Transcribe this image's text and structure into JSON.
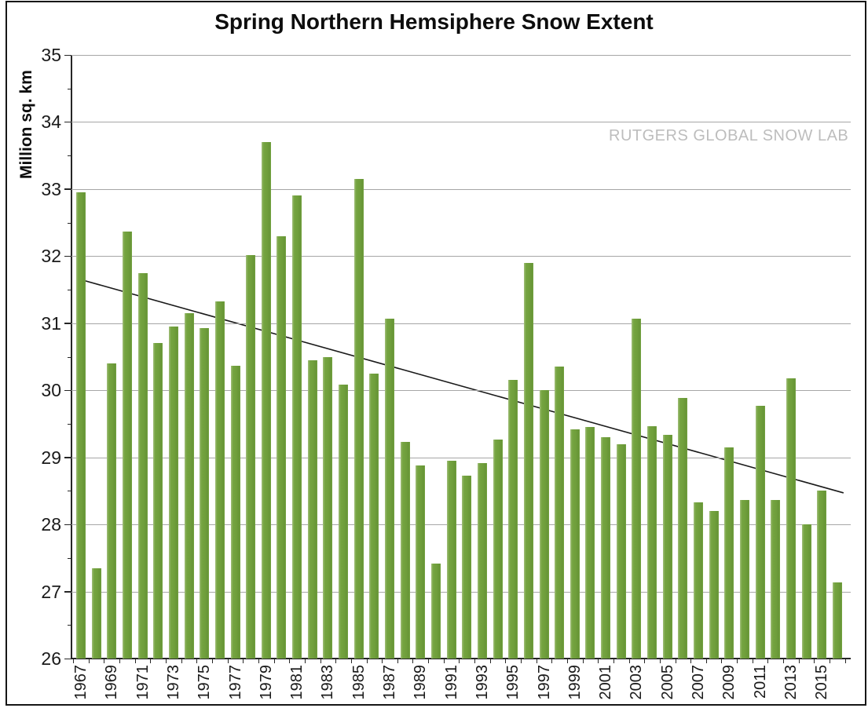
{
  "title": "Spring Northern Hemsiphere Snow Extent",
  "watermark": "RUTGERS GLOBAL SNOW LAB",
  "chart_data": {
    "type": "bar",
    "title": "Spring Northern Hemsiphere Snow Extent",
    "xlabel": "",
    "ylabel": "Million sq. km",
    "ylim": [
      26,
      35
    ],
    "y_major_step": 1,
    "y_minor_step": 0.5,
    "grid": true,
    "legend": "none",
    "x_labels_every": 2,
    "categories": [
      1967,
      1968,
      1969,
      1970,
      1971,
      1972,
      1973,
      1974,
      1975,
      1976,
      1977,
      1978,
      1979,
      1980,
      1981,
      1982,
      1983,
      1984,
      1985,
      1986,
      1987,
      1988,
      1989,
      1990,
      1991,
      1992,
      1993,
      1994,
      1995,
      1996,
      1997,
      1998,
      1999,
      2000,
      2001,
      2002,
      2003,
      2004,
      2005,
      2006,
      2007,
      2008,
      2009,
      2010,
      2011,
      2012,
      2013,
      2014,
      2015,
      2016
    ],
    "values": [
      32.95,
      27.35,
      30.4,
      32.37,
      31.75,
      30.7,
      30.95,
      31.15,
      30.93,
      31.32,
      30.37,
      32.02,
      33.7,
      32.3,
      32.9,
      30.45,
      30.5,
      30.08,
      33.15,
      30.25,
      31.07,
      29.23,
      28.88,
      27.42,
      28.95,
      28.73,
      28.92,
      29.27,
      30.15,
      31.9,
      30.0,
      30.35,
      29.42,
      29.45,
      29.3,
      29.2,
      31.07,
      29.47,
      29.33,
      29.88,
      28.33,
      28.2,
      29.15,
      28.37,
      29.77,
      28.37,
      30.18,
      28.0,
      28.5,
      27.13
    ],
    "trendline": {
      "start_year": 1967,
      "start_value": 31.65,
      "end_year": 2016,
      "end_value": 28.47
    },
    "colors": {
      "bar": "#6f9e3b",
      "bar_edge_light": "#a3bf7c",
      "bar_mid": "#75a441",
      "bar_dark": "#679537",
      "gridline": "#a6a6a6",
      "axis": "#262626",
      "tick_label": "#1a1a1a",
      "title": "#0d0d0d",
      "trendline": "#1a1a1a",
      "watermark": "#bdbdbd",
      "background": "#ffffff",
      "border": "#161616"
    }
  }
}
